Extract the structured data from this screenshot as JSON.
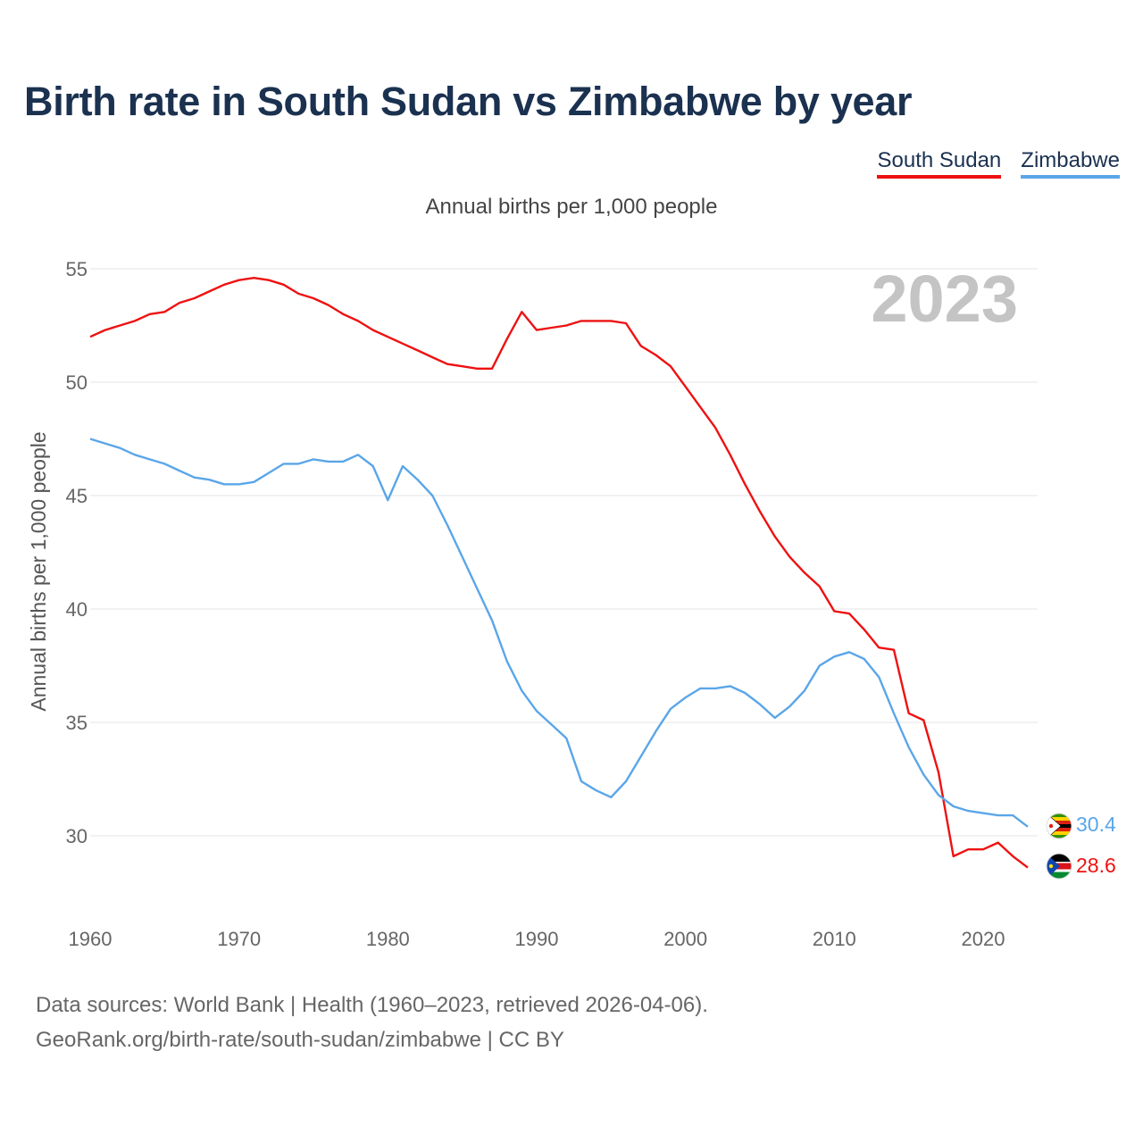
{
  "title": "Birth rate in South Sudan vs Zimbabwe by year",
  "subtitle": "Annual births per 1,000 people",
  "legend": [
    {
      "name": "South Sudan",
      "color": "#ee1111"
    },
    {
      "name": "Zimbabwe",
      "color": "#5aa6e8"
    }
  ],
  "footer": {
    "line1": "Data sources: World Bank | Health (1960–2023, retrieved 2026-04-06).",
    "line2": "GeoRank.org/birth-rate/south-sudan/zimbabwe | CC BY"
  },
  "chart_data": {
    "type": "line",
    "title": "Birth rate in South Sudan vs Zimbabwe by year",
    "ylabel": "Annual births per 1,000 people",
    "xlabel": "",
    "year_label": "2023",
    "xlim": [
      1960,
      2023
    ],
    "ylim": [
      27,
      55.5
    ],
    "yticks": [
      30,
      35,
      40,
      45,
      50,
      55
    ],
    "xticks": [
      1960,
      1970,
      1980,
      1990,
      2000,
      2010,
      2020
    ],
    "grid": true,
    "legend_position": "top-right",
    "x": [
      1960,
      1961,
      1962,
      1963,
      1964,
      1965,
      1966,
      1967,
      1968,
      1969,
      1970,
      1971,
      1972,
      1973,
      1974,
      1975,
      1976,
      1977,
      1978,
      1979,
      1980,
      1981,
      1982,
      1983,
      1984,
      1985,
      1986,
      1987,
      1988,
      1989,
      1990,
      1991,
      1992,
      1993,
      1994,
      1995,
      1996,
      1997,
      1998,
      1999,
      2000,
      2001,
      2002,
      2003,
      2004,
      2005,
      2006,
      2007,
      2008,
      2009,
      2010,
      2011,
      2012,
      2013,
      2014,
      2015,
      2016,
      2017,
      2018,
      2019,
      2020,
      2021,
      2022,
      2023
    ],
    "series": [
      {
        "name": "South Sudan",
        "color": "#ee1111",
        "end_label": "28.6",
        "values": [
          52.0,
          52.3,
          52.5,
          52.7,
          53.0,
          53.1,
          53.5,
          53.7,
          54.0,
          54.3,
          54.5,
          54.6,
          54.5,
          54.3,
          53.9,
          53.7,
          53.4,
          53.0,
          52.7,
          52.3,
          52.0,
          51.7,
          51.4,
          51.1,
          50.8,
          50.7,
          50.6,
          50.6,
          51.9,
          53.1,
          52.3,
          52.4,
          52.5,
          52.7,
          52.7,
          52.7,
          52.6,
          51.6,
          51.2,
          50.7,
          49.8,
          48.9,
          48.0,
          46.8,
          45.5,
          44.3,
          43.2,
          42.3,
          41.6,
          41.0,
          39.9,
          39.8,
          39.1,
          38.3,
          38.2,
          35.4,
          35.1,
          32.8,
          29.1,
          29.4,
          29.4,
          29.7,
          29.1,
          28.6
        ]
      },
      {
        "name": "Zimbabwe",
        "color": "#5aa6e8",
        "end_label": "30.4",
        "values": [
          47.5,
          47.3,
          47.1,
          46.8,
          46.6,
          46.4,
          46.1,
          45.8,
          45.7,
          45.5,
          45.5,
          45.6,
          46.0,
          46.4,
          46.4,
          46.6,
          46.5,
          46.5,
          46.8,
          46.3,
          44.8,
          46.3,
          45.7,
          45.0,
          43.7,
          42.3,
          40.9,
          39.5,
          37.7,
          36.4,
          35.5,
          34.9,
          34.3,
          32.4,
          32.0,
          31.7,
          32.4,
          33.5,
          34.6,
          35.6,
          36.1,
          36.5,
          36.5,
          36.6,
          36.3,
          35.8,
          35.2,
          35.7,
          36.4,
          37.5,
          37.9,
          38.1,
          37.8,
          37.0,
          35.4,
          33.9,
          32.7,
          31.8,
          31.3,
          31.1,
          31.0,
          30.9,
          30.9,
          30.4
        ]
      }
    ]
  }
}
